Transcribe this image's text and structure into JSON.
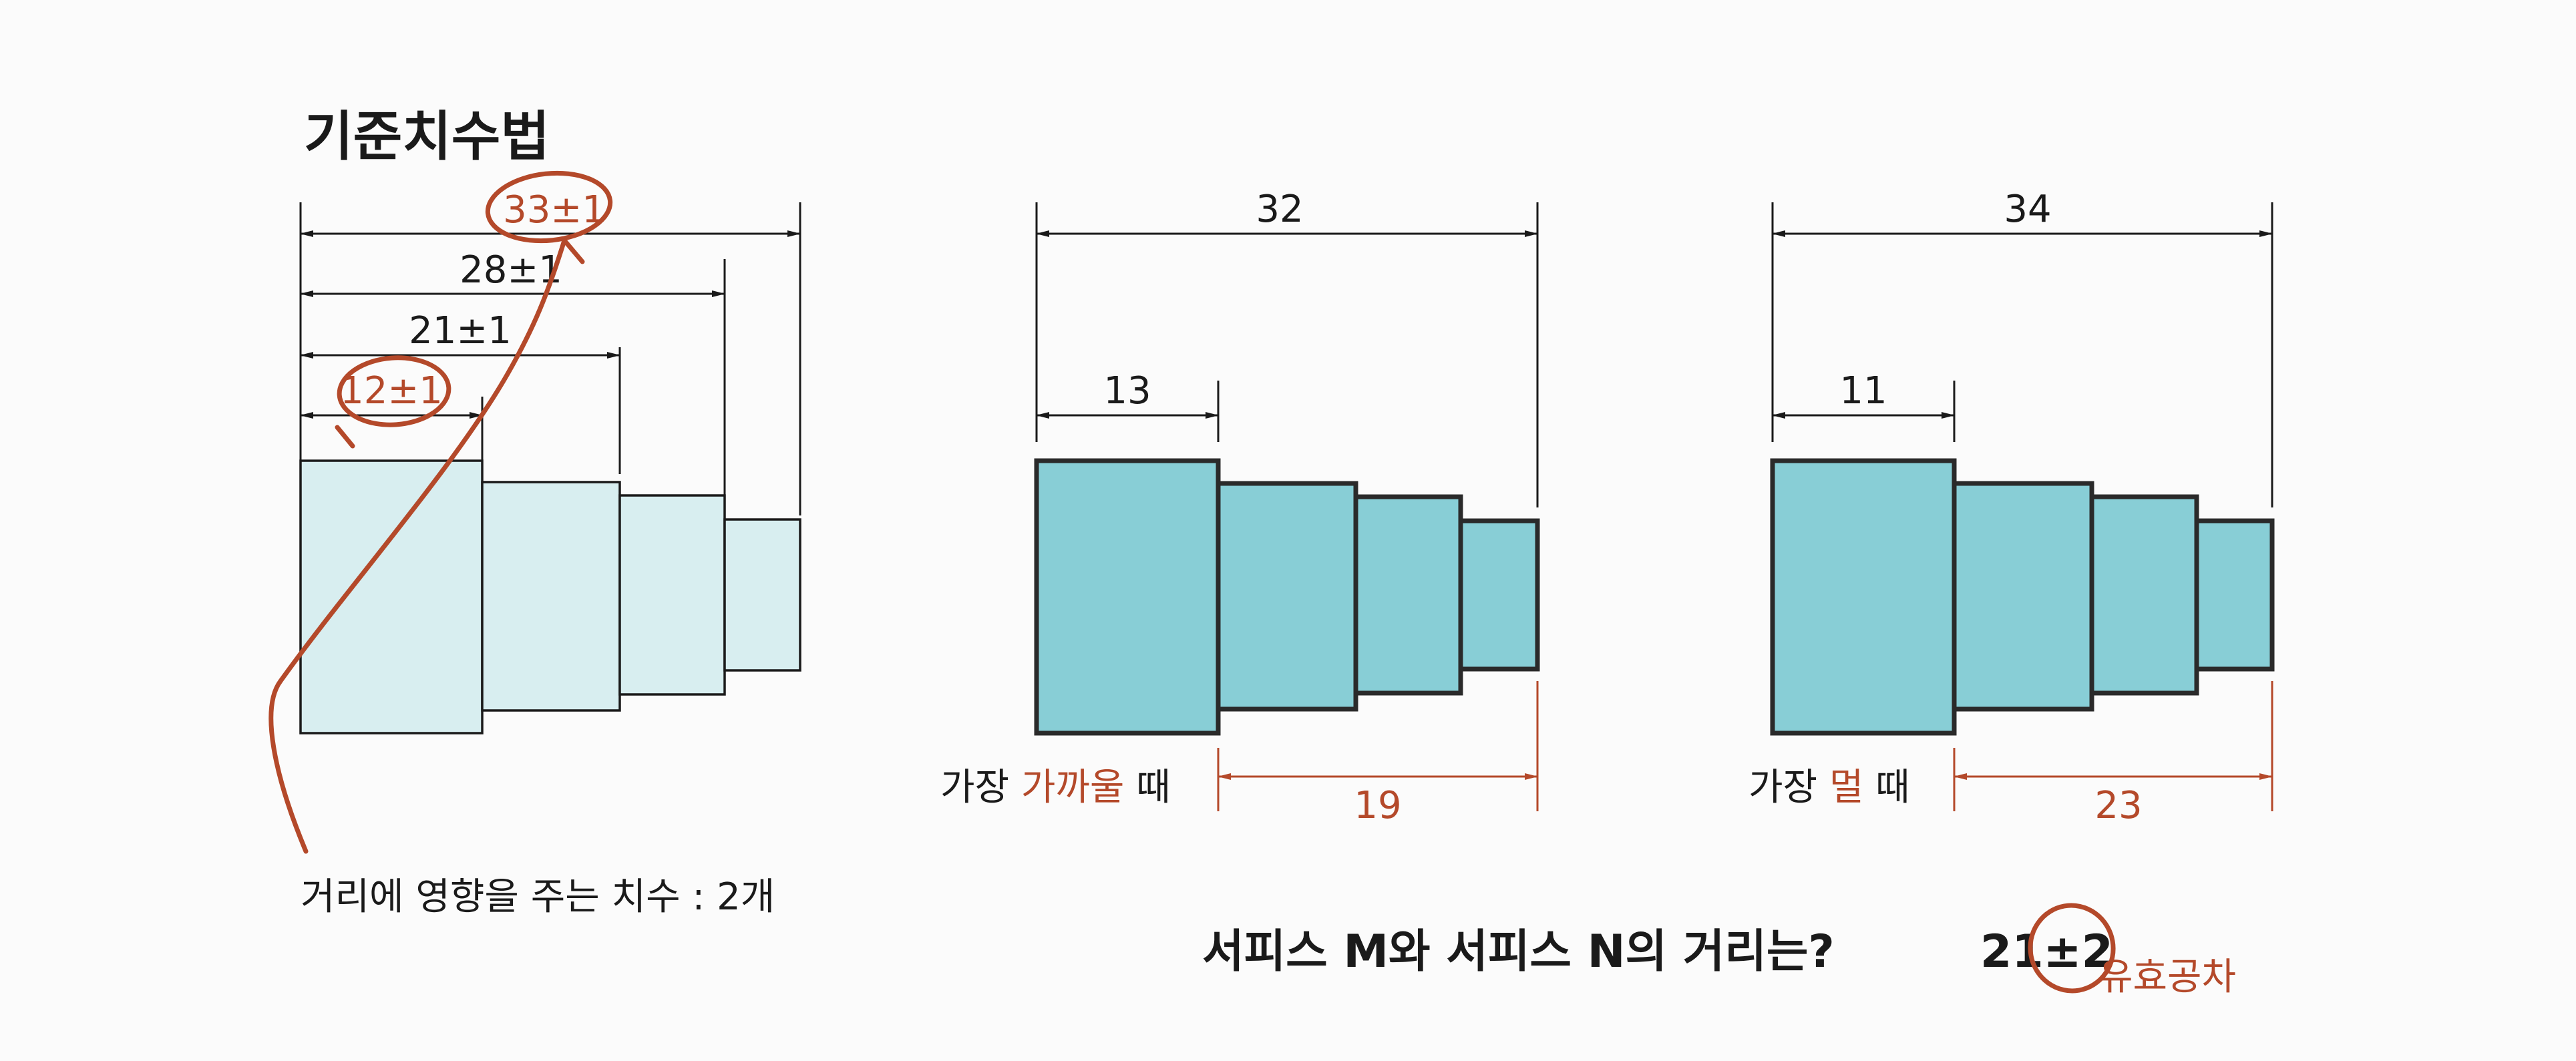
{
  "panel1": {
    "title": "기준치수법",
    "dims": [
      "33±1",
      "28±1",
      "21±1",
      "12±1"
    ],
    "note": "거리에 영향을 주는 치수 : 2개"
  },
  "panel2": {
    "total": "32",
    "first": "13",
    "label_prefix": "가장 ",
    "label_highlight": "가까울",
    "label_suffix": " 때",
    "result": "19"
  },
  "panel3": {
    "total": "34",
    "first": "11",
    "label_prefix": "가장 ",
    "label_highlight": "멀",
    "label_suffix": " 때",
    "result": "23"
  },
  "question": {
    "text": "서피스 M와 서피스 N의 거리는?",
    "answer": "21±2",
    "tolerance_label": "유효공차"
  },
  "colors": {
    "accent": "#b4492a",
    "light_fill": "#d8eef0",
    "dark_fill": "#88ced6"
  }
}
